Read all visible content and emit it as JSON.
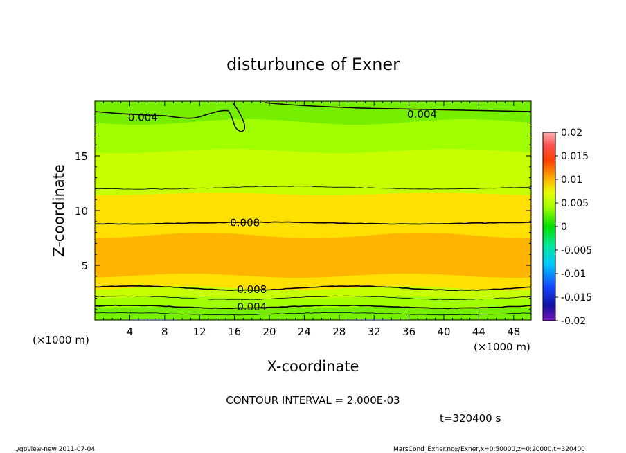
{
  "chart_data": {
    "type": "heatmap",
    "title": "disturbunce of Exner",
    "xlabel": "X-coordinate",
    "ylabel": "Z-coordinate",
    "x_unit": "(×1000 m)",
    "x_unit_right": "(×1000 m)",
    "xlim": [
      0,
      50
    ],
    "ylim": [
      0,
      20
    ],
    "xticks": [
      4,
      8,
      12,
      16,
      20,
      24,
      28,
      32,
      36,
      40,
      44,
      48
    ],
    "yticks": [
      5,
      10,
      15
    ],
    "colorbar": {
      "ticks": [
        "0.02",
        "0.015",
        "0.01",
        "0.005",
        "0",
        "-0.005",
        "-0.01",
        "-0.015",
        "-0.02"
      ],
      "range": [
        -0.02,
        0.02
      ]
    },
    "contour_labels": [
      {
        "text": "0.004",
        "x": 5.5,
        "z": 18.5
      },
      {
        "text": "0.004",
        "x": 37.5,
        "z": 18.8
      },
      {
        "text": "0.008",
        "x": 17.2,
        "z": 8.9
      },
      {
        "text": "0.008",
        "x": 18.0,
        "z": 2.8
      },
      {
        "text": "0.004",
        "x": 18.0,
        "z": 1.2
      }
    ],
    "contour_interval_text": "CONTOUR INTERVAL = 2.000E-03",
    "time_text": "t=320400 s"
  },
  "footer": {
    "left": "./gpview-new   2011-07-04",
    "right": "MarsCond_Exner.nc@Exner,x=0:50000,z=0:20000,t=320400"
  },
  "colors": {
    "c_0_002": "#76ee00",
    "c_0_004": "#a0ff00",
    "c_0_006": "#c8ff00",
    "c_0_008": "#ffe000",
    "c_0_010": "#ffb400"
  }
}
